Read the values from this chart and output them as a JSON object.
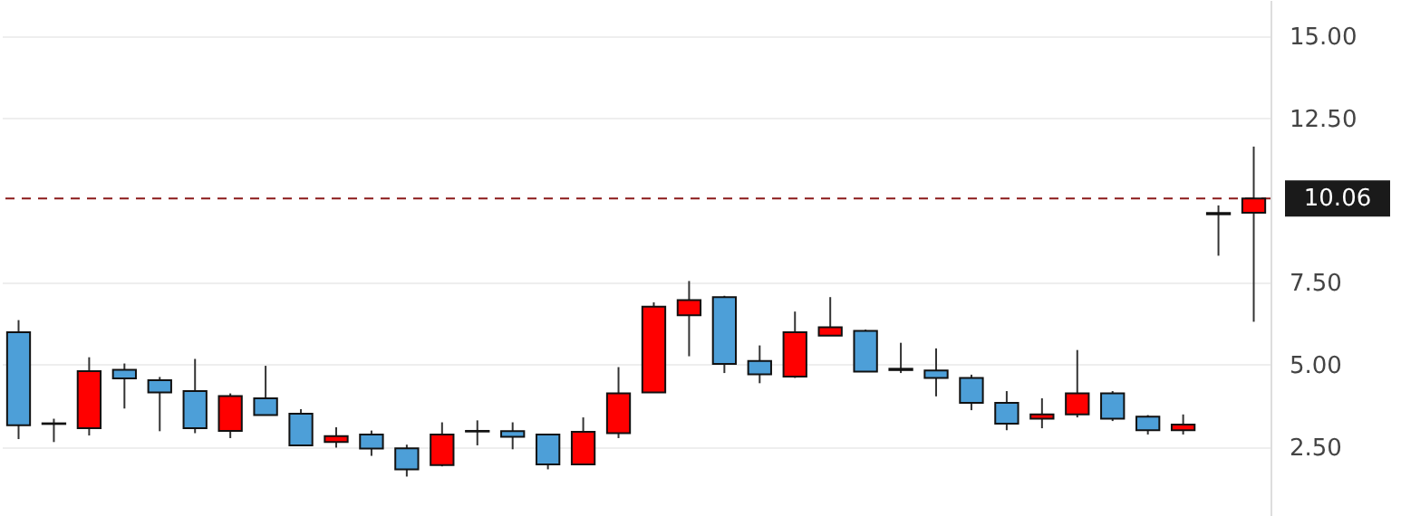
{
  "chart_data": {
    "type": "candlestick",
    "categories": [
      null,
      null,
      null,
      null,
      null,
      null,
      null,
      null,
      null,
      null,
      null,
      null,
      null,
      null,
      null,
      null,
      null,
      null,
      null,
      null,
      null,
      null,
      null,
      null,
      null,
      null,
      null,
      null,
      null,
      null,
      null,
      null,
      null,
      null,
      null,
      null
    ],
    "ohlc": [
      [
        5.99,
        6.36,
        2.74,
        3.16
      ],
      [
        3.2,
        3.36,
        2.65,
        3.22
      ],
      [
        3.07,
        5.23,
        2.85,
        4.81
      ],
      [
        4.85,
        5.04,
        3.67,
        4.59
      ],
      [
        4.53,
        4.63,
        2.98,
        4.16
      ],
      [
        4.2,
        5.18,
        2.92,
        3.07
      ],
      [
        2.99,
        4.13,
        2.77,
        4.05
      ],
      [
        3.98,
        4.97,
        3.47,
        3.47
      ],
      [
        3.51,
        3.65,
        2.55,
        2.55
      ],
      [
        2.65,
        3.1,
        2.48,
        2.83
      ],
      [
        2.88,
        3.0,
        2.23,
        2.45
      ],
      [
        2.46,
        2.57,
        1.6,
        1.82
      ],
      [
        1.95,
        3.25,
        1.91,
        2.88
      ],
      [
        2.99,
        3.31,
        2.55,
        2.97
      ],
      [
        2.98,
        3.25,
        2.43,
        2.81
      ],
      [
        2.88,
        2.88,
        1.82,
        1.97
      ],
      [
        1.97,
        3.4,
        1.97,
        2.96
      ],
      [
        2.92,
        4.93,
        2.77,
        4.13
      ],
      [
        4.16,
        6.9,
        4.16,
        6.77
      ],
      [
        6.51,
        7.55,
        5.26,
        6.97
      ],
      [
        7.06,
        7.1,
        4.75,
        5.03
      ],
      [
        5.12,
        5.59,
        4.44,
        4.71
      ],
      [
        4.64,
        6.62,
        4.6,
        5.99
      ],
      [
        5.89,
        7.06,
        5.89,
        6.14
      ],
      [
        6.03,
        6.07,
        4.79,
        4.79
      ],
      [
        4.88,
        5.67,
        4.75,
        4.84
      ],
      [
        4.83,
        5.5,
        4.04,
        4.6
      ],
      [
        4.6,
        4.7,
        3.62,
        3.84
      ],
      [
        3.84,
        4.2,
        3.01,
        3.21
      ],
      [
        3.36,
        3.98,
        3.07,
        3.49
      ],
      [
        3.49,
        5.45,
        3.4,
        4.13
      ],
      [
        4.13,
        4.2,
        3.29,
        3.36
      ],
      [
        3.42,
        3.47,
        2.88,
        3.01
      ],
      [
        3.01,
        3.49,
        2.88,
        3.18
      ],
      [
        9.58,
        9.85,
        8.32,
        9.62
      ],
      [
        9.63,
        11.64,
        6.31,
        10.06
      ]
    ],
    "colors": [
      "#4d9fd8",
      "#4d9fd8",
      "#ff0000",
      "#4d9fd8",
      "#4d9fd8",
      "#4d9fd8",
      "#ff0000",
      "#4d9fd8",
      "#4d9fd8",
      "#ff0000",
      "#4d9fd8",
      "#4d9fd8",
      "#ff0000",
      "#4d9fd8",
      "#4d9fd8",
      "#4d9fd8",
      "#ff0000",
      "#ff0000",
      "#ff0000",
      "#ff0000",
      "#4d9fd8",
      "#4d9fd8",
      "#ff0000",
      "#ff0000",
      "#4d9fd8",
      "#4d9fd8",
      "#4d9fd8",
      "#4d9fd8",
      "#4d9fd8",
      "#ff0000",
      "#ff0000",
      "#4d9fd8",
      "#4d9fd8",
      "#ff0000",
      "#ff0000",
      "#ff0000"
    ],
    "ylim": [
      0.4,
      16.1
    ],
    "yticks": [
      {
        "value": 2.5,
        "label": "2.50"
      },
      {
        "value": 5,
        "label": "5.00"
      },
      {
        "value": 7.5,
        "label": "7.50"
      },
      {
        "value": 12.5,
        "label": "12.50"
      },
      {
        "value": 15,
        "label": "15.00"
      }
    ],
    "tick_labels": "y",
    "grid": "y",
    "ref_lines": [
      {
        "axis": "y",
        "value": 10.06,
        "label": "10.06",
        "color": "#8b1a1a",
        "line_style": "dashed"
      }
    ]
  }
}
